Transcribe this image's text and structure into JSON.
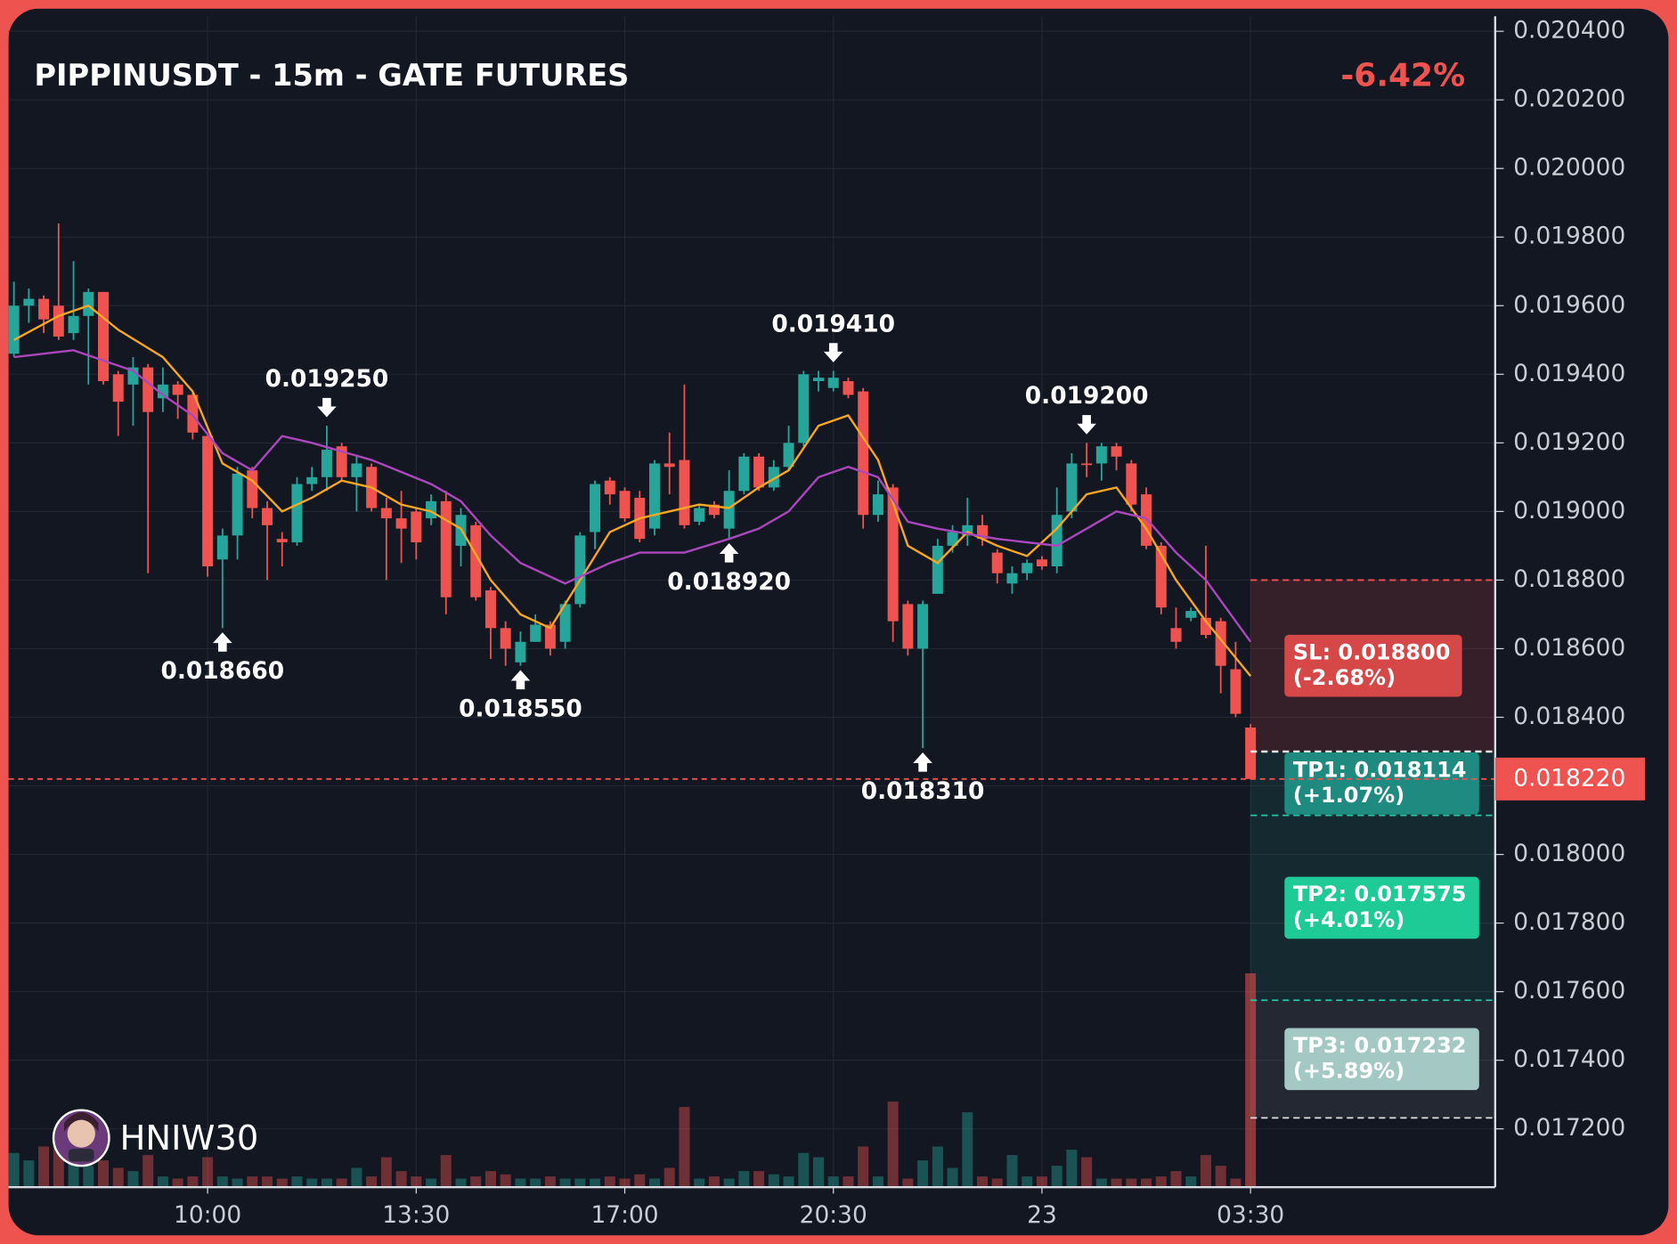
{
  "chart_data": {
    "type": "candlestick",
    "title": "PIPPINUSDT - 15m - GATE FUTURES",
    "change_label": "-6.42%",
    "watermark": "HNIW30",
    "ylim": [
      0.01703,
      0.020444
    ],
    "yticks": [
      {
        "value": 0.0172,
        "label": "0.017200"
      },
      {
        "value": 0.0174,
        "label": "0.017400"
      },
      {
        "value": 0.0176,
        "label": "0.017600"
      },
      {
        "value": 0.0178,
        "label": "0.017800"
      },
      {
        "value": 0.018,
        "label": "0.018000"
      },
      {
        "value": 0.0182,
        "label": "0.018200"
      },
      {
        "value": 0.0184,
        "label": "0.018400"
      },
      {
        "value": 0.0186,
        "label": "0.018600"
      },
      {
        "value": 0.0188,
        "label": "0.018800"
      },
      {
        "value": 0.019,
        "label": "0.019000"
      },
      {
        "value": 0.0192,
        "label": "0.019200"
      },
      {
        "value": 0.0194,
        "label": "0.019400"
      },
      {
        "value": 0.0196,
        "label": "0.019600"
      },
      {
        "value": 0.0198,
        "label": "0.019800"
      },
      {
        "value": 0.02,
        "label": "0.020000"
      },
      {
        "value": 0.0202,
        "label": "0.020200"
      },
      {
        "value": 0.0204,
        "label": "0.020400"
      }
    ],
    "xlim": [
      -0.36,
      99.42
    ],
    "xticks": [
      {
        "value": 13,
        "label": "10:00"
      },
      {
        "value": 27,
        "label": "13:30"
      },
      {
        "value": 41,
        "label": "17:00"
      },
      {
        "value": 55,
        "label": "20:30"
      },
      {
        "value": 69,
        "label": "23"
      },
      {
        "value": 83,
        "label": "03:30"
      }
    ],
    "grid": true,
    "up_color": "#26a69a",
    "down_color": "#ef5350",
    "open": [
      0.01946,
      0.0196,
      0.01962,
      0.0196,
      0.01952,
      0.01957,
      0.01964,
      0.0194,
      0.01937,
      0.01942,
      0.01933,
      0.01937,
      0.01934,
      0.01922,
      0.01886,
      0.01893,
      0.01912,
      0.01901,
      0.01892,
      0.01891,
      0.01908,
      0.0191,
      0.01919,
      0.0191,
      0.01913,
      0.01901,
      0.01898,
      0.019,
      0.01898,
      0.01903,
      0.0189,
      0.01896,
      0.01877,
      0.01866,
      0.01856,
      0.01862,
      0.01867,
      0.01862,
      0.01873,
      0.01894,
      0.01909,
      0.01906,
      0.01904,
      0.01895,
      0.01914,
      0.01915,
      0.01897,
      0.01902,
      0.01895,
      0.01906,
      0.01916,
      0.01907,
      0.01913,
      0.0192,
      0.01938,
      0.01936,
      0.01938,
      0.01935,
      0.01899,
      0.01907,
      0.01873,
      0.0186,
      0.01876,
      0.0189,
      0.01893,
      0.01896,
      0.01888,
      0.01879,
      0.01882,
      0.01886,
      0.01884,
      0.019,
      0.01914,
      0.01914,
      0.01919,
      0.01914,
      0.01905,
      0.0189,
      0.01866,
      0.01869,
      0.01869,
      0.01868,
      0.01854,
      0.01837
    ],
    "high": [
      0.01967,
      0.01965,
      0.01963,
      0.01984,
      0.01973,
      0.01965,
      0.01964,
      0.01941,
      0.01945,
      0.01943,
      0.01942,
      0.01938,
      0.01935,
      0.01923,
      0.01895,
      0.01913,
      0.01913,
      0.01903,
      0.01894,
      0.0191,
      0.01913,
      0.01925,
      0.0192,
      0.01916,
      0.01914,
      0.01904,
      0.01906,
      0.01901,
      0.01905,
      0.01906,
      0.01901,
      0.01897,
      0.01878,
      0.01868,
      0.01865,
      0.0187,
      0.01868,
      0.01874,
      0.01894,
      0.01909,
      0.0191,
      0.01907,
      0.01906,
      0.01915,
      0.01923,
      0.01937,
      0.01902,
      0.01903,
      0.01912,
      0.01917,
      0.01917,
      0.01915,
      0.01925,
      0.01941,
      0.01941,
      0.01941,
      0.01939,
      0.01936,
      0.01909,
      0.01908,
      0.01874,
      0.01874,
      0.01892,
      0.01896,
      0.01904,
      0.01899,
      0.01889,
      0.01884,
      0.01886,
      0.01887,
      0.01907,
      0.01917,
      0.0192,
      0.0192,
      0.0192,
      0.01915,
      0.01907,
      0.01891,
      0.01872,
      0.01872,
      0.0189,
      0.01869,
      0.01862,
      0.01838
    ],
    "low": [
      0.01945,
      0.01955,
      0.01952,
      0.0195,
      0.0195,
      0.01937,
      0.01937,
      0.01922,
      0.01925,
      0.01882,
      0.01929,
      0.01927,
      0.01921,
      0.01881,
      0.01866,
      0.01886,
      0.01898,
      0.0188,
      0.01884,
      0.0189,
      0.01906,
      0.01906,
      0.01909,
      0.019,
      0.019,
      0.0188,
      0.01885,
      0.01886,
      0.01896,
      0.0187,
      0.01884,
      0.01874,
      0.01857,
      0.01855,
      0.01855,
      0.01862,
      0.01858,
      0.0186,
      0.01872,
      0.01889,
      0.01902,
      0.01897,
      0.01891,
      0.01893,
      0.01905,
      0.01895,
      0.01896,
      0.01898,
      0.01892,
      0.01905,
      0.01906,
      0.01906,
      0.01912,
      0.01919,
      0.01935,
      0.01935,
      0.01933,
      0.01895,
      0.01897,
      0.01862,
      0.01858,
      0.01831,
      0.01876,
      0.01888,
      0.0189,
      0.0189,
      0.01879,
      0.01876,
      0.0188,
      0.01883,
      0.01882,
      0.01898,
      0.0191,
      0.01909,
      0.01912,
      0.019,
      0.01889,
      0.0187,
      0.0186,
      0.01868,
      0.01863,
      0.01847,
      0.0184,
      0.01822
    ],
    "close": [
      0.0196,
      0.01962,
      0.01956,
      0.01951,
      0.01957,
      0.01964,
      0.01938,
      0.01932,
      0.01942,
      0.01929,
      0.01937,
      0.01934,
      0.01923,
      0.01884,
      0.01893,
      0.01911,
      0.01901,
      0.01896,
      0.01891,
      0.01908,
      0.0191,
      0.01918,
      0.0191,
      0.01914,
      0.01901,
      0.01898,
      0.01895,
      0.01891,
      0.01903,
      0.01875,
      0.01899,
      0.01875,
      0.01866,
      0.0186,
      0.01862,
      0.01867,
      0.0186,
      0.01873,
      0.01893,
      0.01908,
      0.01905,
      0.01898,
      0.01892,
      0.01914,
      0.01913,
      0.01896,
      0.01901,
      0.01899,
      0.01906,
      0.01916,
      0.01907,
      0.01913,
      0.0192,
      0.0194,
      0.01939,
      0.01939,
      0.01934,
      0.01899,
      0.01905,
      0.01868,
      0.0186,
      0.01873,
      0.0189,
      0.01894,
      0.01896,
      0.01892,
      0.01882,
      0.01882,
      0.01885,
      0.01884,
      0.01899,
      0.01914,
      0.01914,
      0.01919,
      0.01916,
      0.01902,
      0.0189,
      0.01872,
      0.01862,
      0.01871,
      0.01864,
      0.01855,
      0.01841,
      0.01822
    ],
    "volume": [
      32,
      25,
      38,
      42,
      30,
      20,
      25,
      18,
      15,
      30,
      10,
      8,
      10,
      28,
      10,
      8,
      10,
      10,
      8,
      10,
      8,
      8,
      8,
      18,
      10,
      28,
      15,
      10,
      8,
      30,
      8,
      10,
      15,
      12,
      8,
      8,
      10,
      8,
      8,
      8,
      10,
      8,
      12,
      8,
      18,
      75,
      8,
      10,
      8,
      15,
      15,
      12,
      10,
      32,
      28,
      10,
      10,
      38,
      10,
      80,
      8,
      25,
      38,
      18,
      70,
      10,
      8,
      30,
      10,
      10,
      20,
      35,
      28,
      8,
      8,
      8,
      8,
      10,
      15,
      10,
      30,
      20,
      8,
      200
    ],
    "ma": [
      {
        "color": "#f5a623",
        "x": [
          0,
          3,
          5,
          7,
          10,
          12,
          14,
          16,
          18,
          20,
          22,
          24,
          26,
          28,
          30,
          32,
          34,
          36,
          38,
          40,
          42,
          44,
          46,
          48,
          50,
          52,
          54,
          56,
          58,
          60,
          62,
          64,
          66,
          68,
          70,
          72,
          74,
          76,
          78,
          80,
          83
        ],
        "values": [
          0.0195,
          0.01957,
          0.0196,
          0.01953,
          0.01945,
          0.01935,
          0.01914,
          0.01909,
          0.019,
          0.01904,
          0.01909,
          0.01907,
          0.01902,
          0.019,
          0.01895,
          0.0188,
          0.0187,
          0.01866,
          0.0188,
          0.01894,
          0.01898,
          0.019,
          0.01902,
          0.01901,
          0.01907,
          0.01912,
          0.01925,
          0.01928,
          0.01915,
          0.0189,
          0.01885,
          0.01894,
          0.0189,
          0.01887,
          0.01895,
          0.01905,
          0.01907,
          0.01895,
          0.0188,
          0.01868,
          0.01852
        ]
      },
      {
        "color": "#ab47bc",
        "x": [
          0,
          4,
          6,
          8,
          10,
          12,
          14,
          16,
          18,
          20,
          24,
          28,
          30,
          32,
          34,
          37,
          40,
          42,
          45,
          48,
          50,
          52,
          54,
          56,
          58,
          60,
          62,
          66,
          70,
          72,
          74,
          76,
          78,
          80,
          83
        ],
        "values": [
          0.01945,
          0.01947,
          0.01944,
          0.01941,
          0.01934,
          0.01928,
          0.01917,
          0.01912,
          0.01922,
          0.0192,
          0.01915,
          0.01908,
          0.01903,
          0.01893,
          0.01885,
          0.01879,
          0.01885,
          0.01888,
          0.01888,
          0.01892,
          0.01895,
          0.019,
          0.0191,
          0.01913,
          0.0191,
          0.01897,
          0.01895,
          0.01892,
          0.0189,
          0.01895,
          0.019,
          0.01898,
          0.01888,
          0.0188,
          0.01862
        ]
      }
    ],
    "annotations": [
      {
        "label": "0.018660",
        "value": 0.01866,
        "x": 14,
        "side": "below"
      },
      {
        "label": "0.019250",
        "value": 0.01925,
        "x": 21,
        "side": "above"
      },
      {
        "label": "0.018550",
        "value": 0.01855,
        "x": 34,
        "side": "below"
      },
      {
        "label": "0.018920",
        "value": 0.01892,
        "x": 48,
        "side": "below"
      },
      {
        "label": "0.019410",
        "value": 0.01941,
        "x": 55,
        "side": "above"
      },
      {
        "label": "0.018310",
        "value": 0.01831,
        "x": 61,
        "side": "below"
      },
      {
        "label": "0.019200",
        "value": 0.0192,
        "x": 72,
        "side": "above"
      }
    ],
    "entry": 0.0183,
    "levels": [
      {
        "label": "SL: 0.018800",
        "change_label": "(-2.68%)",
        "value": 0.0188,
        "color": "#d64848"
      },
      {
        "label": "TP1: 0.018114",
        "change_label": "(+1.07%)",
        "value": 0.018114,
        "color": "#1e8a80"
      },
      {
        "label": "TP2: 0.017575",
        "change_label": "(+4.01%)",
        "value": 0.017575,
        "color": "#1ecb97"
      },
      {
        "label": "TP3: 0.017232",
        "change_label": "(+5.89%)",
        "value": 0.017232,
        "color": "#a4c9c5"
      }
    ],
    "last_price": {
      "value": 0.01822,
      "label": "0.018220"
    }
  }
}
